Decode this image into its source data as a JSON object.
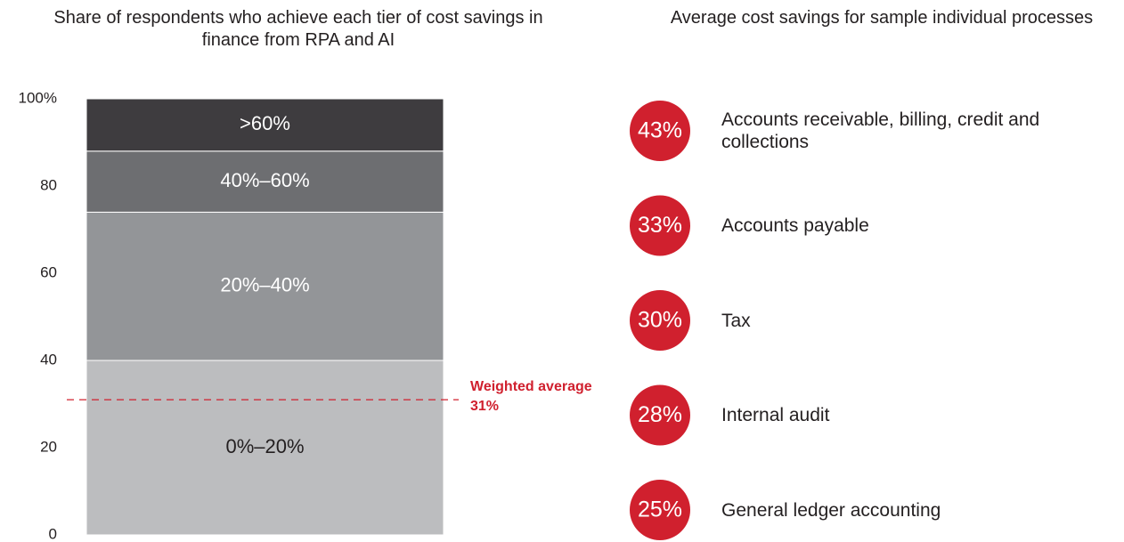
{
  "chart_data": [
    {
      "type": "bar",
      "stacked": true,
      "title": "Share of respondents who achieve each tier of cost savings in finance from RPA and AI",
      "categories": [
        null
      ],
      "series": [
        {
          "name": "0%–20%",
          "color": "#bcbdbf",
          "values": [
            40
          ]
        },
        {
          "name": "20%–40%",
          "color": "#939598",
          "values": [
            34
          ]
        },
        {
          "name": "40%–60%",
          "color": "#6d6e71",
          "values": [
            14
          ]
        },
        {
          "name": ">60%",
          "color": "#3e3c3f",
          "values": [
            12
          ]
        }
      ],
      "ylim": [
        0,
        100
      ],
      "yticks": [
        0,
        20,
        40,
        60,
        80,
        {
          "value": 100,
          "label": "100%"
        }
      ],
      "reference_line": {
        "value": 31,
        "label": "Weighted average 31%",
        "color": "#d0202e"
      }
    },
    {
      "type": "circles",
      "title": "Average cost savings for sample individual processes",
      "categories": [
        "Accounts receivable, billing, credit and collections",
        "Accounts payable",
        "Tax",
        "Internal audit",
        "General ledger accounting"
      ],
      "values": [
        43,
        33,
        30,
        28,
        25
      ],
      "value_labels": [
        "43%",
        "33%",
        "30%",
        "28%",
        "25%"
      ],
      "color": "#d0202e"
    }
  ]
}
